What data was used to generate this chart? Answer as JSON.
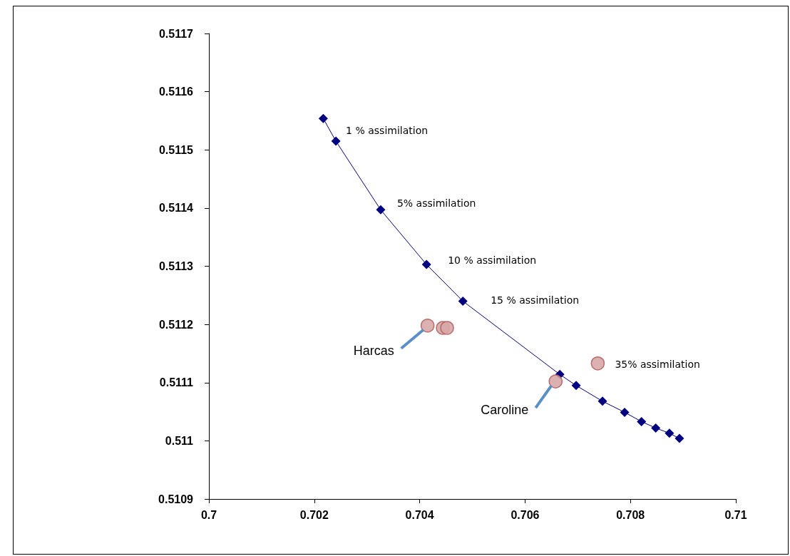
{
  "chart_data": {
    "type": "scatter",
    "xlim": [
      0.7,
      0.71
    ],
    "xticks": [
      0.7,
      0.702,
      0.704,
      0.706,
      0.708,
      0.71
    ],
    "ylim": [
      0.5109,
      0.5117
    ],
    "yticks": [
      0.5109,
      0.511,
      0.5111,
      0.5112,
      0.5113,
      0.5114,
      0.5115,
      0.5116,
      0.5117
    ],
    "grid": false,
    "series": [
      {
        "type": "line",
        "marker": "diamond",
        "color": "#000080",
        "x": [
          0.70217,
          0.70241,
          0.70326,
          0.70413,
          0.70482,
          0.70666,
          0.70697,
          0.70747,
          0.70789,
          0.70821,
          0.70848,
          0.70874,
          0.70893
        ],
        "values": [
          0.511554,
          0.511515,
          0.511397,
          0.511303,
          0.51124,
          0.511114,
          0.511095,
          0.511068,
          0.511049,
          0.511033,
          0.511022,
          0.511013,
          0.511004
        ]
      },
      {
        "type": "scatter",
        "marker": "circle",
        "color": "#d8a8a8",
        "x": [
          0.70415,
          0.70444,
          0.70452,
          0.70658,
          0.70738
        ],
        "values": [
          0.511198,
          0.511194,
          0.511194,
          0.511102,
          0.511133
        ]
      }
    ],
    "annotations": [
      {
        "text": "1 % assimilation",
        "x": 0.70241,
        "y": 0.511515
      },
      {
        "text": "5% assimilation",
        "x": 0.70326,
        "y": 0.511397
      },
      {
        "text": "10 % assimilation",
        "x": 0.70413,
        "y": 0.511303
      },
      {
        "text": "15 % assimilation",
        "x": 0.70482,
        "y": 0.51124
      },
      {
        "text": "35% assimilation",
        "x": 0.70738,
        "y": 0.511133
      },
      {
        "text": "Harcas",
        "x": 0.70415,
        "y": 0.511198
      },
      {
        "text": "Caroline",
        "x": 0.70658,
        "y": 0.511102
      }
    ]
  }
}
